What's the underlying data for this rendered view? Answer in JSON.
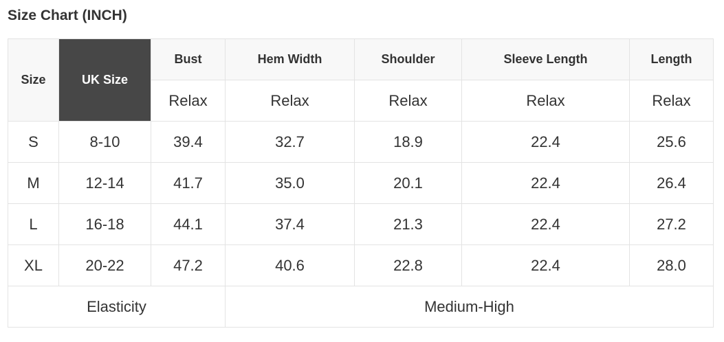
{
  "title": "Size Chart (INCH)",
  "headers": [
    "Size",
    "UK Size",
    "Bust",
    "Hem Width",
    "Shoulder",
    "Sleeve Length",
    "Length"
  ],
  "subheaders": [
    "Relax",
    "Relax",
    "Relax",
    "Relax",
    "Relax"
  ],
  "rows": [
    [
      "S",
      "8-10",
      "39.4",
      "32.7",
      "18.9",
      "22.4",
      "25.6"
    ],
    [
      "M",
      "12-14",
      "41.7",
      "35.0",
      "20.1",
      "22.4",
      "26.4"
    ],
    [
      "L",
      "16-18",
      "44.1",
      "37.4",
      "21.3",
      "22.4",
      "27.2"
    ],
    [
      "XL",
      "20-22",
      "47.2",
      "40.6",
      "22.8",
      "22.4",
      "28.0"
    ]
  ],
  "footer": {
    "label": "Elasticity",
    "value": "Medium-High"
  },
  "colors": {
    "highlight_header": "#474747",
    "header_bg": "#f8f8f8",
    "border": "#e3e3e3"
  }
}
